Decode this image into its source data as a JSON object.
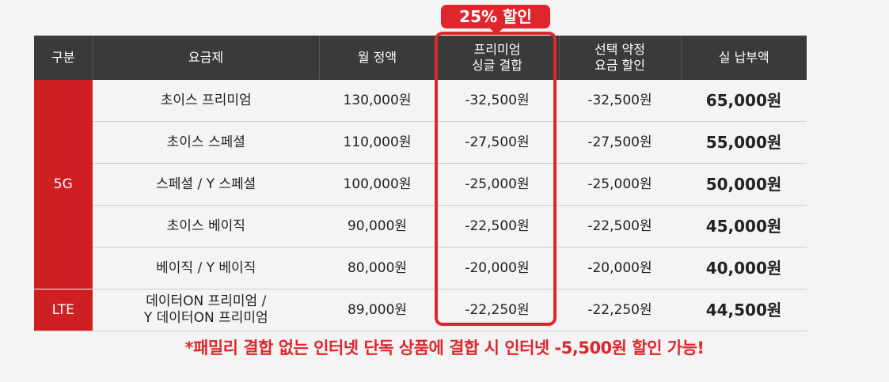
{
  "badge": "25% 할인",
  "headers": [
    "구분",
    "요금제",
    "월 정액",
    "프리미엄\n싱글 결합",
    "선택 약정\n요금 할인",
    "실 납부액"
  ],
  "groups": {
    "g5": "5G",
    "lte": "LTE"
  },
  "rows": [
    {
      "plan": "초이스 프리미엄",
      "monthly": "130,000원",
      "single": "-32,500원",
      "contract": "-32,500원",
      "final": "65,000원"
    },
    {
      "plan": "초이스 스페셜",
      "monthly": "110,000원",
      "single": "-27,500원",
      "contract": "-27,500원",
      "final": "55,000원"
    },
    {
      "plan": "스페셜 / Y 스페셜",
      "monthly": "100,000원",
      "single": "-25,000원",
      "contract": "-25,000원",
      "final": "50,000원"
    },
    {
      "plan": "초이스 베이직",
      "monthly": "90,000원",
      "single": "-22,500원",
      "contract": "-22,500원",
      "final": "45,000원"
    },
    {
      "plan": "베이직 / Y 베이직",
      "monthly": "80,000원",
      "single": "-20,000원",
      "contract": "-20,000원",
      "final": "40,000원"
    },
    {
      "plan": "데이터ON 프리미엄 /\nY 데이터ON 프리미엄",
      "monthly": "89,000원",
      "single": "-22,250원",
      "contract": "-22,250원",
      "final": "44,500원"
    }
  ],
  "footnote": {
    "pre": "*패밀리 결합 없는 인터넷 단독 상품에 결합 시 ",
    "strong": "인터넷 -5,500원",
    "post": " 할인 가능!"
  },
  "colors": {
    "accent": "#e0262d",
    "group_bg": "#cf1f23",
    "header_bg": "#3a3a3a"
  }
}
